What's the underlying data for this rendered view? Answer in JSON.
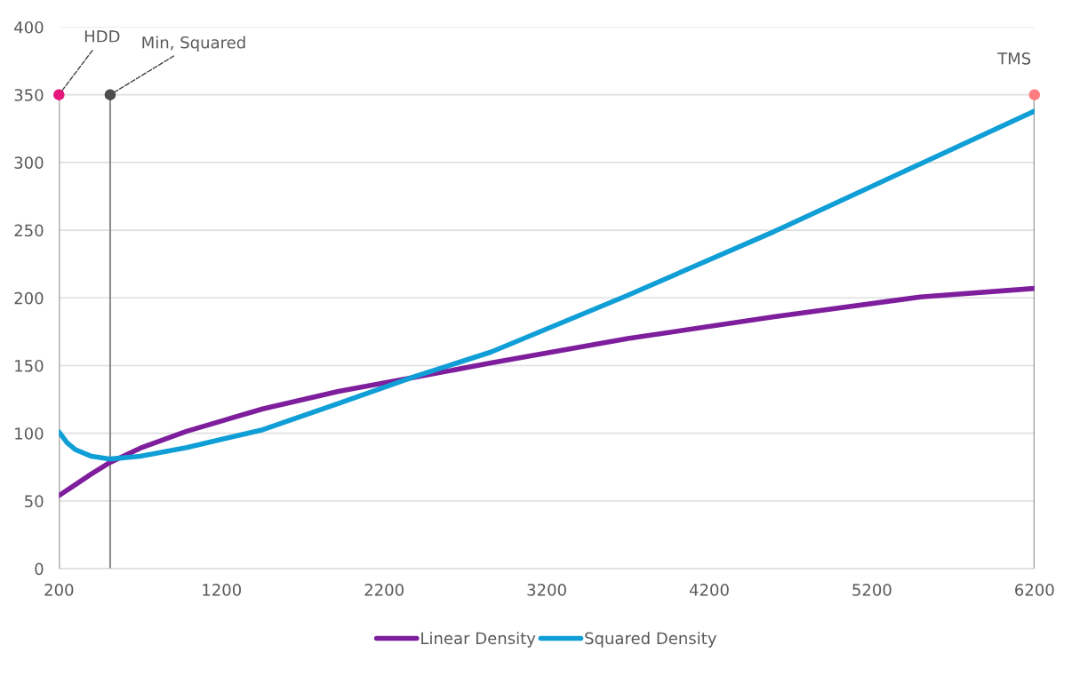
{
  "chart_data": {
    "type": "line",
    "xlim": [
      200,
      6200
    ],
    "xticks": [
      200,
      1200,
      2200,
      3200,
      4200,
      5200,
      6200
    ],
    "ylim": [
      0,
      400
    ],
    "yticks": [
      0,
      50,
      100,
      150,
      200,
      250,
      300,
      350,
      400
    ],
    "grid": "y",
    "legend": "bottom",
    "series": [
      {
        "name": "Linear Density",
        "color": "#7e1e9c",
        "x": [
          200,
          300,
          400,
          515,
          700,
          986,
          1453,
          1919,
          2391,
          2857,
          3700,
          4599,
          5498,
          6200
        ],
        "values": [
          54,
          62,
          70,
          78.5,
          89,
          101.5,
          118,
          131,
          141.4,
          152,
          170,
          186,
          200.7,
          207
        ]
      },
      {
        "name": "Squared Density",
        "color": "#0f9ed5",
        "x": [
          200,
          250,
          300,
          400,
          515,
          700,
          986,
          1453,
          1919,
          2391,
          2857,
          3700,
          4599,
          5498,
          6200
        ],
        "values": [
          101,
          93,
          88,
          83,
          81,
          83,
          89.5,
          102.6,
          122,
          142,
          160,
          202,
          249,
          299,
          338
        ]
      },
      {
        "type": "lollipop",
        "x": [
          200,
          515,
          6200
        ],
        "values": [
          350,
          350,
          350
        ],
        "color": "#8c8c8c",
        "colors": [
          "#e6177a",
          "#4d4d4d",
          "#ff7c80"
        ]
      }
    ],
    "annotations": [
      {
        "text": "HDD",
        "x": 200,
        "y": 350
      },
      {
        "text": "Min, Squared",
        "x": 515,
        "y": 350
      },
      {
        "text": "TMS",
        "x": 6200,
        "y": 350
      }
    ]
  }
}
